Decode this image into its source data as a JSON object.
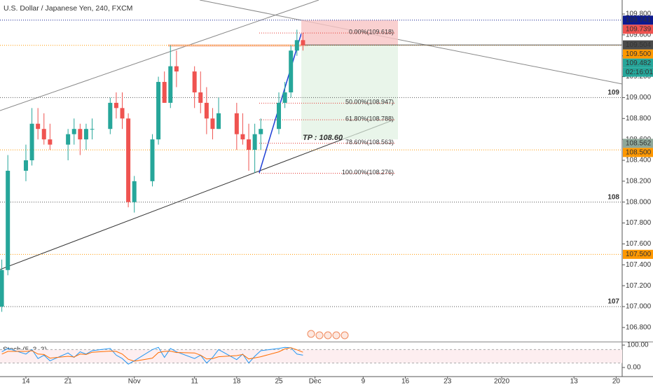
{
  "header": {
    "title": "U.S. Dollar / Japanese Yen, 240, FXCM"
  },
  "chart_data": {
    "type": "candlestick",
    "x": [
      -4,
      -3,
      0,
      1,
      2,
      3,
      4,
      7,
      8,
      9,
      10,
      11,
      14,
      15,
      16,
      17,
      18,
      21,
      22,
      23,
      24,
      25,
      28,
      29,
      30,
      31,
      32,
      35,
      36,
      37,
      38,
      39,
      42,
      43,
      44,
      45,
      46
    ],
    "open": [
      107.0,
      107.35,
      108.3,
      108.4,
      108.75,
      108.7,
      108.6,
      108.55,
      108.65,
      108.7,
      108.6,
      108.7,
      108.7,
      108.95,
      108.9,
      108.8,
      108.0,
      108.2,
      108.6,
      109.15,
      108.95,
      109.3,
      109.25,
      109.05,
      108.95,
      108.8,
      108.7,
      108.85,
      108.65,
      108.6,
      108.5,
      108.65,
      108.7,
      108.95,
      109.05,
      109.45,
      109.55
    ],
    "high": [
      107.45,
      108.45,
      108.55,
      108.9,
      108.9,
      108.85,
      108.75,
      108.7,
      108.8,
      108.75,
      108.75,
      108.8,
      109.0,
      109.05,
      109.05,
      108.85,
      108.25,
      108.65,
      109.2,
      109.25,
      109.5,
      109.45,
      109.3,
      109.25,
      109.1,
      108.9,
      109.0,
      108.95,
      108.85,
      108.75,
      108.75,
      108.8,
      109.05,
      109.15,
      109.5,
      109.65,
      109.62
    ],
    "low": [
      106.95,
      107.3,
      108.2,
      108.35,
      108.6,
      108.55,
      108.5,
      108.4,
      108.55,
      108.45,
      108.5,
      108.6,
      108.65,
      108.8,
      108.7,
      107.95,
      107.9,
      108.15,
      108.55,
      108.95,
      108.9,
      109.1,
      108.9,
      108.85,
      108.65,
      108.6,
      108.7,
      108.5,
      108.55,
      108.3,
      108.28,
      108.5,
      108.65,
      108.9,
      109.0,
      109.4,
      109.45
    ],
    "close": [
      107.35,
      108.3,
      108.4,
      108.75,
      108.7,
      108.6,
      108.55,
      108.65,
      108.7,
      108.6,
      108.7,
      108.7,
      108.95,
      108.9,
      108.8,
      108.0,
      108.2,
      108.6,
      109.15,
      108.95,
      109.3,
      109.25,
      109.05,
      108.95,
      108.8,
      108.7,
      108.85,
      108.65,
      108.6,
      108.5,
      108.65,
      108.7,
      108.95,
      109.05,
      109.45,
      109.55,
      109.5
    ],
    "colors": {
      "up": "#26a69a",
      "down": "#ef5350"
    },
    "xlim": [
      -4.3,
      99
    ],
    "xticks": [
      {
        "value": 0,
        "label": "14"
      },
      {
        "value": 7,
        "label": "21"
      },
      {
        "value": 18,
        "label": "Nov"
      },
      {
        "value": 28,
        "label": "11"
      },
      {
        "value": 35,
        "label": "18"
      },
      {
        "value": 42,
        "label": "25"
      },
      {
        "value": 48,
        "label": "Dec"
      },
      {
        "value": 56,
        "label": "9"
      },
      {
        "value": 63,
        "label": "16"
      },
      {
        "value": 70,
        "label": "23"
      },
      {
        "value": 79,
        "label": "2020"
      },
      {
        "value": 91,
        "label": "13"
      },
      {
        "value": 98,
        "label": "20"
      }
    ],
    "ylim": [
      106.665,
      109.934
    ],
    "yticks": [
      {
        "value": 106.8,
        "label": "106.800"
      },
      {
        "value": 107.0,
        "label": "107.000"
      },
      {
        "value": 107.2,
        "label": "107.200"
      },
      {
        "value": 107.4,
        "label": "107.400"
      },
      {
        "value": 107.6,
        "label": "107.600"
      },
      {
        "value": 107.8,
        "label": "107.800"
      },
      {
        "value": 108.0,
        "label": "108.000"
      },
      {
        "value": 108.2,
        "label": "108.200"
      },
      {
        "value": 108.4,
        "label": "108.400"
      },
      {
        "value": 108.6,
        "label": "108.600"
      },
      {
        "value": 108.8,
        "label": "108.800"
      },
      {
        "value": 109.0,
        "label": "109.000"
      },
      {
        "value": 109.2,
        "label": "109.200"
      },
      {
        "value": 109.4,
        "label": "109.400"
      },
      {
        "value": 109.6,
        "label": "109.600"
      },
      {
        "value": 109.8,
        "label": "109.800"
      }
    ],
    "levels": [
      {
        "value": 109.741,
        "color": "#0d1a8f"
      },
      {
        "value": 109.5,
        "color": "#ff9800"
      },
      {
        "value": 109,
        "label": "109",
        "color": "#555555"
      },
      {
        "value": 108.5,
        "color": "#ff9800"
      },
      {
        "value": 108,
        "label": "108",
        "color": "#555555"
      },
      {
        "value": 107.5,
        "color": "#ff9800"
      },
      {
        "value": 107,
        "label": "107",
        "color": "#555555"
      }
    ],
    "fib": [
      {
        "value": 109.618,
        "label": "0.00%(109.618)"
      },
      {
        "value": 108.947,
        "label": "50.00%(108.947)"
      },
      {
        "value": 108.788,
        "label": "61.80%(108.788)"
      },
      {
        "value": 108.563,
        "label": "78.60%(108.563)"
      },
      {
        "value": 108.276,
        "label": "100.00%(108.276)"
      }
    ],
    "position": {
      "stop": 109.741,
      "entry": 109.504,
      "target": 108.6,
      "label": "TP : 108.60"
    },
    "price_tags": [
      {
        "value": 109.741,
        "label": "109.741",
        "color": "#0d1a8f"
      },
      {
        "value": 109.739,
        "label": "109.739",
        "color": "#ef5350"
      },
      {
        "value": 109.504,
        "label": "109.504",
        "color": "#4a4a4a"
      },
      {
        "value": 109.5,
        "label": "109.500",
        "color": "#ff9800"
      },
      {
        "value": 109.482,
        "label": "109.482",
        "color": "#26a69a"
      },
      {
        "value": 108.562,
        "label": "108.562",
        "color": "#8fa89a"
      },
      {
        "value": 108.5,
        "label": "108.500",
        "color": "#ff9800"
      },
      {
        "value": 107.5,
        "label": "107.500",
        "color": "#ff9800"
      }
    ],
    "countdown": "02:16:01",
    "stoch": {
      "title": "Stoch (5, 3, 3)",
      "ylim": [
        -40.6,
        112.5
      ],
      "yticks": [
        {
          "value": 100,
          "label": "100.00"
        },
        {
          "value": 0,
          "label": "0.00"
        }
      ],
      "band": [
        20,
        80
      ],
      "series": [
        {
          "color": "#2196f3",
          "values": [
            70,
            85,
            60,
            80,
            40,
            55,
            30,
            65,
            45,
            70,
            60,
            75,
            85,
            55,
            40,
            15,
            30,
            80,
            90,
            45,
            85,
            70,
            40,
            55,
            20,
            45,
            80,
            35,
            60,
            20,
            50,
            75,
            85,
            90,
            88,
            60,
            55
          ]
        },
        {
          "color": "#ff6d00",
          "values": [
            60,
            72,
            72,
            75,
            60,
            58,
            42,
            50,
            47,
            60,
            58,
            68,
            73,
            72,
            60,
            37,
            28,
            42,
            67,
            72,
            73,
            67,
            65,
            55,
            38,
            40,
            48,
            53,
            58,
            38,
            43,
            48,
            70,
            83,
            88,
            79,
            68
          ]
        }
      ]
    }
  }
}
